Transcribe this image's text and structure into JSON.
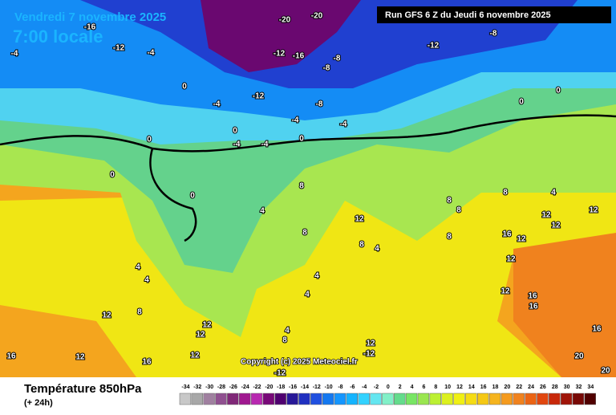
{
  "title": "Vendredi 7 novembre 2025",
  "subtitle": "7:00 locale",
  "run": "Run GFS 6 Z du Jeudi 6 novembre 2025",
  "copyright": "Copyright (c) 2025 Meteociel.fr",
  "variable": "Température 850hPa",
  "lead": "(+ 24h)",
  "legend": {
    "values": [
      -34,
      -32,
      -30,
      -28,
      -26,
      -24,
      -22,
      -20,
      -18,
      -16,
      -14,
      -12,
      -10,
      -8,
      -6,
      -4,
      -2,
      0,
      2,
      4,
      6,
      8,
      10,
      12,
      14,
      16,
      18,
      20,
      22,
      24,
      26,
      28,
      30,
      32,
      34
    ],
    "colors": [
      "#c8c8c8",
      "#a8a8a8",
      "#a080a0",
      "#905090",
      "#802878",
      "#a01890",
      "#b828b0",
      "#780878",
      "#500070",
      "#281898",
      "#2030c0",
      "#2050e0",
      "#1478f0",
      "#1496ff",
      "#14b4ff",
      "#32d2ff",
      "#64e6f0",
      "#82f0c8",
      "#64dc8c",
      "#78e664",
      "#9ae650",
      "#bcf032",
      "#dcf01e",
      "#f0f014",
      "#f5dc14",
      "#f5c814",
      "#f5b41e",
      "#f59b1e",
      "#f0821e",
      "#eb6414",
      "#e1460f",
      "#c8280a",
      "#a01408",
      "#780805",
      "#500000"
    ]
  },
  "contour_labels": [
    -4,
    -12,
    -16,
    -4,
    0,
    -4,
    -12,
    -20,
    -20,
    -12,
    -16,
    -8,
    -8,
    -8,
    -12,
    -8,
    0,
    0,
    -4,
    -4,
    0,
    -4,
    -4,
    0,
    0,
    0,
    0,
    4,
    8,
    12,
    8,
    4,
    8,
    4,
    4,
    4,
    8,
    4,
    4,
    8,
    12,
    12,
    12,
    12,
    16,
    16,
    12,
    -12,
    -12,
    12,
    16,
    12,
    12,
    12,
    12,
    12,
    12,
    16,
    16,
    16,
    20,
    20,
    4,
    8,
    8,
    8,
    8
  ]
}
